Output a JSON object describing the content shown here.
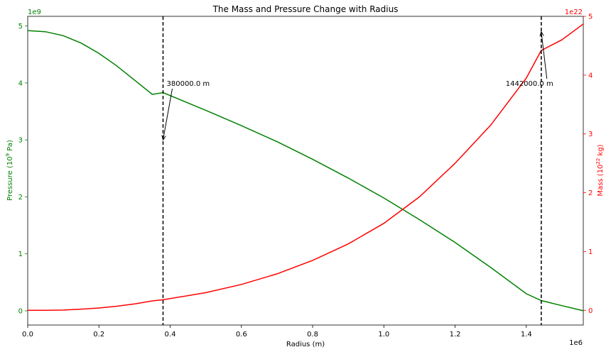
{
  "chart_data": {
    "type": "line",
    "title": "The Mass and Pressure Change with Radius",
    "xlabel": "Radius (m)",
    "x_offset_text": "1e6",
    "xlim": [
      0,
      1.56
    ],
    "x_ticks": [
      "0.0",
      "0.2",
      "0.4",
      "0.6",
      "0.8",
      "1.0",
      "1.2",
      "1.4"
    ],
    "y_left": {
      "label_main": "Pressure (10",
      "label_sup": "9",
      "label_end": " Pa)",
      "offset_text": "1e9",
      "color": "#008000",
      "ylim": [
        -0.25,
        5.17
      ],
      "ticks": [
        "0",
        "1",
        "2",
        "3",
        "4",
        "5"
      ]
    },
    "y_right": {
      "label_main": "Mass (10",
      "label_sup": "22",
      "label_end": " kg)",
      "offset_text": "1e22",
      "color": "#ff0000",
      "ylim": [
        -0.25,
        5.0
      ],
      "ticks": [
        "0",
        "1",
        "2",
        "3",
        "4",
        "5"
      ]
    },
    "series": [
      {
        "axis": "left",
        "color": "#008000",
        "x": [
          0,
          0.05,
          0.1,
          0.15,
          0.2,
          0.25,
          0.3,
          0.35,
          0.38,
          0.5,
          0.6,
          0.7,
          0.8,
          0.9,
          1.0,
          1.1,
          1.2,
          1.3,
          1.4,
          1.442,
          1.5,
          1.56
        ],
        "y": [
          4.92,
          4.9,
          4.83,
          4.7,
          4.52,
          4.3,
          4.05,
          3.8,
          3.83,
          3.52,
          3.25,
          2.97,
          2.66,
          2.33,
          1.98,
          1.6,
          1.2,
          0.76,
          0.3,
          0.18,
          0.09,
          0.0
        ]
      },
      {
        "axis": "right",
        "color": "#ff0000",
        "x": [
          0,
          0.05,
          0.1,
          0.15,
          0.2,
          0.25,
          0.3,
          0.35,
          0.38,
          0.5,
          0.6,
          0.7,
          0.8,
          0.9,
          1.0,
          1.1,
          1.2,
          1.3,
          1.4,
          1.442,
          1.5,
          1.56
        ],
        "y": [
          0,
          0.0,
          0.005,
          0.02,
          0.04,
          0.07,
          0.11,
          0.16,
          0.18,
          0.3,
          0.44,
          0.62,
          0.85,
          1.13,
          1.48,
          1.93,
          2.5,
          3.15,
          3.95,
          4.42,
          4.6,
          4.87
        ]
      }
    ],
    "vlines": [
      0.38,
      1.442
    ],
    "annotations": [
      {
        "text": "380000.0 m",
        "xy": [
          0.38,
          3.0
        ],
        "xytext": [
          0.39,
          4.0
        ],
        "axis": "left",
        "ha": "left"
      },
      {
        "text": "1442000.0 m",
        "xy": [
          1.442,
          4.9
        ],
        "xytext": [
          1.342,
          4.0
        ],
        "axis": "left",
        "ha": "left"
      }
    ]
  }
}
